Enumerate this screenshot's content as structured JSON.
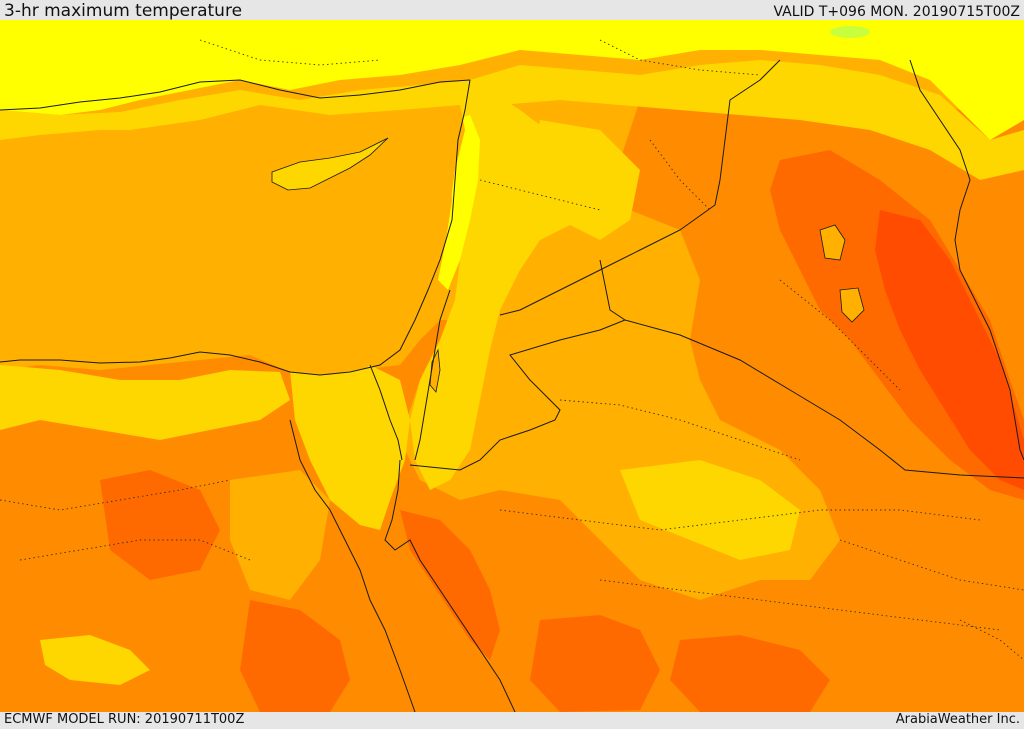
{
  "header": {
    "title": "3-hr maximum temperature",
    "valid": "VALID T+096 MON. 20190715T00Z"
  },
  "footer": {
    "model_run": "ECMWF MODEL RUN: 20190711T00Z",
    "credit": "ArabiaWeather Inc."
  },
  "palette": {
    "yellow": "#ffff00",
    "gold": "#ffd700",
    "amber": "#ffb000",
    "orange": "#ff8c00",
    "dark_orange": "#ff6a00",
    "red_orange": "#ff4c00",
    "boundary": "#1a1a1a",
    "green_trace": "#c8ff3c",
    "background": "#e6e6e6"
  }
}
